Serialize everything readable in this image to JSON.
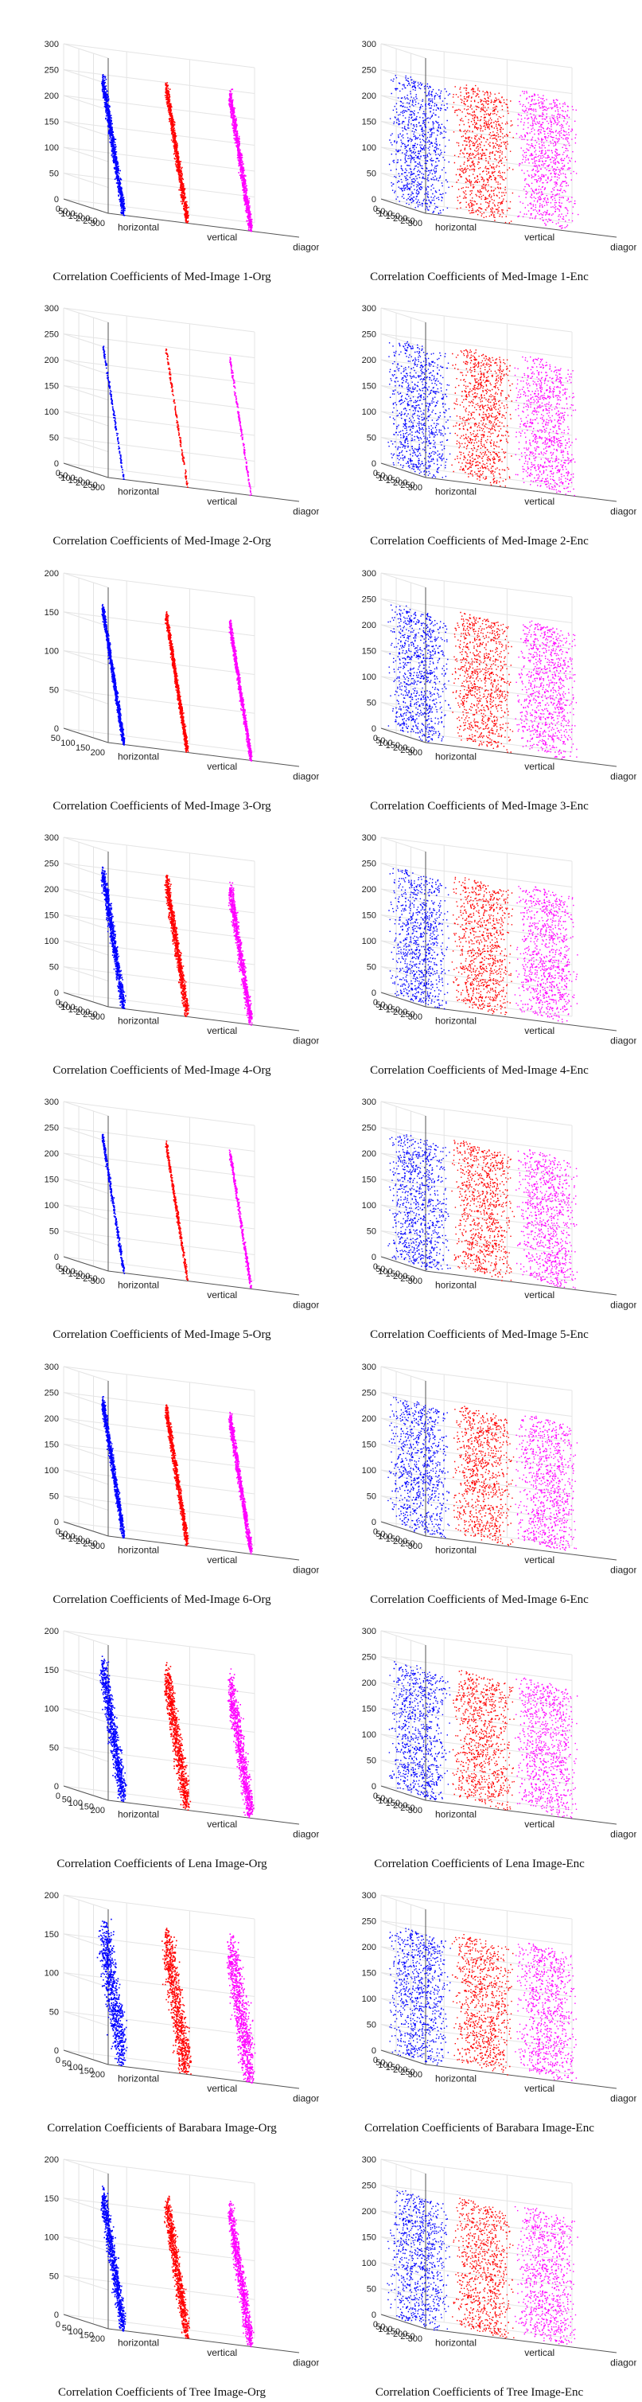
{
  "figure": {
    "columns": [
      "Org",
      "Enc"
    ],
    "background": "#ffffff"
  },
  "chart_data": [
    {
      "type": "scatter",
      "variant": "correlated",
      "title": "Correlation Coefficients of Med-Image 1-Org",
      "zlim": [
        0,
        300
      ],
      "zticks": [
        0,
        50,
        100,
        150,
        200,
        250,
        300
      ],
      "yticks": [
        0,
        50,
        100,
        150,
        200,
        250,
        300
      ],
      "tick_labels_z": [
        "0",
        "50",
        "100",
        "150",
        "200",
        "250",
        "300"
      ],
      "tick_labels_y": [
        "0",
        "50",
        "100",
        "150",
        "200",
        "250",
        "300"
      ],
      "xlabel": "horizontal",
      "ylabel": "vertical",
      "zlabel": "diagonal",
      "series": [
        {
          "name": "horizontal",
          "color": "#0000ff"
        },
        {
          "name": "vertical",
          "color": "#ff0000"
        },
        {
          "name": "diagonal",
          "color": "#ff00ff"
        }
      ],
      "density": "dense",
      "spread": 6
    },
    {
      "type": "scatter",
      "variant": "uniform",
      "title": "Correlation Coefficients of Med-Image 1-Enc",
      "zlim": [
        0,
        300
      ],
      "zticks": [
        0,
        50,
        100,
        150,
        200,
        250,
        300
      ],
      "yticks": [
        0,
        50,
        100,
        150,
        200,
        250,
        300
      ],
      "tick_labels_z": [
        "0",
        "50",
        "100",
        "150",
        "200",
        "250",
        "300"
      ],
      "tick_labels_y": [
        "0",
        "50",
        "100",
        "150",
        "200",
        "250",
        "300"
      ],
      "xlabel": "horizontal",
      "ylabel": "vertical",
      "zlabel": "diagonal",
      "series": [
        {
          "name": "horizontal",
          "color": "#0000ff"
        },
        {
          "name": "vertical",
          "color": "#ff0000"
        },
        {
          "name": "diagonal",
          "color": "#ff00ff"
        }
      ],
      "density": "dense"
    },
    {
      "type": "scatter",
      "variant": "correlated",
      "title": "Correlation Coefficients of Med-Image 2-Org",
      "zlim": [
        0,
        300
      ],
      "zticks": [
        0,
        50,
        100,
        150,
        200,
        250,
        300
      ],
      "yticks": [
        0,
        50,
        100,
        150,
        200,
        250,
        300
      ],
      "tick_labels_z": [
        "0",
        "50",
        "100",
        "150",
        "200",
        "250",
        "300"
      ],
      "tick_labels_y": [
        "0",
        "50",
        "100",
        "150",
        "200",
        "250",
        "300"
      ],
      "xlabel": "horizontal",
      "ylabel": "vertical",
      "zlabel": "diagonal",
      "series": [
        {
          "name": "horizontal",
          "color": "#0000ff"
        },
        {
          "name": "vertical",
          "color": "#ff0000"
        },
        {
          "name": "diagonal",
          "color": "#ff00ff"
        }
      ],
      "density": "sparse",
      "spread": 2
    },
    {
      "type": "scatter",
      "variant": "uniform",
      "title": "Correlation Coefficients of Med-Image 2-Enc",
      "zlim": [
        0,
        300
      ],
      "zticks": [
        0,
        50,
        100,
        150,
        200,
        250,
        300
      ],
      "yticks": [
        0,
        50,
        100,
        150,
        200,
        250,
        300
      ],
      "tick_labels_z": [
        "0",
        "50",
        "100",
        "150",
        "200",
        "250",
        "300"
      ],
      "tick_labels_y": [
        "0",
        "50",
        "100",
        "150",
        "200",
        "250",
        "300"
      ],
      "xlabel": "horizontal",
      "ylabel": "vertical",
      "zlabel": "diagonal",
      "series": [
        {
          "name": "horizontal",
          "color": "#0000ff"
        },
        {
          "name": "vertical",
          "color": "#ff0000"
        },
        {
          "name": "diagonal",
          "color": "#ff00ff"
        }
      ],
      "density": "dense"
    },
    {
      "type": "scatter",
      "variant": "correlated",
      "title": "Correlation Coefficients of Med-Image 3-Org",
      "zlim": [
        0,
        200
      ],
      "zticks": [
        0,
        50,
        100,
        150,
        200
      ],
      "yticks": [
        50,
        100,
        150,
        200
      ],
      "tick_labels_z": [
        "0",
        "50",
        "100",
        "150",
        "200"
      ],
      "tick_labels_y": [
        "50",
        "100",
        "150",
        "200"
      ],
      "xlabel": "horizontal",
      "ylabel": "vertical",
      "zlabel": "diagonal",
      "series": [
        {
          "name": "horizontal",
          "color": "#0000ff"
        },
        {
          "name": "vertical",
          "color": "#ff0000"
        },
        {
          "name": "diagonal",
          "color": "#ff00ff"
        }
      ],
      "density": "dense",
      "spread": 4
    },
    {
      "type": "scatter",
      "variant": "uniform",
      "title": "Correlation Coefficients of Med-Image 3-Enc",
      "zlim": [
        0,
        300
      ],
      "zticks": [
        0,
        50,
        100,
        150,
        200,
        250,
        300
      ],
      "yticks": [
        0,
        50,
        100,
        150,
        200,
        250,
        300
      ],
      "tick_labels_z": [
        "0",
        "50",
        "100",
        "150",
        "200",
        "250",
        "300"
      ],
      "tick_labels_y": [
        "0",
        "50",
        "100",
        "150",
        "200",
        "250",
        "300"
      ],
      "xlabel": "horizontal",
      "ylabel": "vertical",
      "zlabel": "diagonal",
      "series": [
        {
          "name": "horizontal",
          "color": "#0000ff"
        },
        {
          "name": "vertical",
          "color": "#ff0000"
        },
        {
          "name": "diagonal",
          "color": "#ff00ff"
        }
      ],
      "density": "dense"
    },
    {
      "type": "scatter",
      "variant": "correlated",
      "title": "Correlation Coefficients of Med-Image 4-Org",
      "zlim": [
        0,
        300
      ],
      "zticks": [
        0,
        50,
        100,
        150,
        200,
        250,
        300
      ],
      "yticks": [
        0,
        50,
        100,
        150,
        200,
        250,
        300
      ],
      "tick_labels_z": [
        "0",
        "50",
        "100",
        "150",
        "200",
        "250",
        "300"
      ],
      "tick_labels_y": [
        "0",
        "50",
        "100",
        "150",
        "200",
        "250",
        "300"
      ],
      "xlabel": "horizontal",
      "ylabel": "vertical",
      "zlabel": "diagonal",
      "series": [
        {
          "name": "horizontal",
          "color": "#0000ff"
        },
        {
          "name": "vertical",
          "color": "#ff0000"
        },
        {
          "name": "diagonal",
          "color": "#ff00ff"
        }
      ],
      "density": "dense",
      "spread": 7
    },
    {
      "type": "scatter",
      "variant": "uniform",
      "title": "Correlation Coefficients of Med-Image 4-Enc",
      "zlim": [
        0,
        300
      ],
      "zticks": [
        0,
        50,
        100,
        150,
        200,
        250,
        300
      ],
      "yticks": [
        0,
        50,
        100,
        150,
        200,
        250,
        300
      ],
      "tick_labels_z": [
        "0",
        "50",
        "100",
        "150",
        "200",
        "250",
        "300"
      ],
      "tick_labels_y": [
        "0",
        "50",
        "100",
        "150",
        "200",
        "250",
        "300"
      ],
      "xlabel": "horizontal",
      "ylabel": "vertical",
      "zlabel": "diagonal",
      "series": [
        {
          "name": "horizontal",
          "color": "#0000ff"
        },
        {
          "name": "vertical",
          "color": "#ff0000"
        },
        {
          "name": "diagonal",
          "color": "#ff00ff"
        }
      ],
      "density": "dense"
    },
    {
      "type": "scatter",
      "variant": "correlated",
      "title": "Correlation Coefficients of Med-Image 5-Org",
      "zlim": [
        0,
        300
      ],
      "zticks": [
        0,
        50,
        100,
        150,
        200,
        250,
        300
      ],
      "yticks": [
        0,
        50,
        100,
        150,
        200,
        250,
        300
      ],
      "tick_labels_z": [
        "0",
        "50",
        "100",
        "150",
        "200",
        "250",
        "300"
      ],
      "tick_labels_y": [
        "0",
        "50",
        "100",
        "150",
        "200",
        "250",
        "300"
      ],
      "xlabel": "horizontal",
      "ylabel": "vertical",
      "zlabel": "diagonal",
      "series": [
        {
          "name": "horizontal",
          "color": "#0000ff"
        },
        {
          "name": "vertical",
          "color": "#ff0000"
        },
        {
          "name": "diagonal",
          "color": "#ff00ff"
        }
      ],
      "density": "medium",
      "spread": 3
    },
    {
      "type": "scatter",
      "variant": "uniform",
      "title": "Correlation Coefficients of Med-Image 5-Enc",
      "zlim": [
        0,
        300
      ],
      "zticks": [
        0,
        50,
        100,
        150,
        200,
        250,
        300
      ],
      "yticks": [
        0,
        50,
        100,
        150,
        200,
        250,
        300
      ],
      "tick_labels_z": [
        "0",
        "50",
        "100",
        "150",
        "200",
        "250",
        "300"
      ],
      "tick_labels_y": [
        "0",
        "50",
        "100",
        "150",
        "200",
        "250",
        "300"
      ],
      "xlabel": "horizontal",
      "ylabel": "vertical",
      "zlabel": "diagonal",
      "series": [
        {
          "name": "horizontal",
          "color": "#0000ff"
        },
        {
          "name": "vertical",
          "color": "#ff0000"
        },
        {
          "name": "diagonal",
          "color": "#ff00ff"
        }
      ],
      "density": "dense"
    },
    {
      "type": "scatter",
      "variant": "correlated",
      "title": "Correlation Coefficients of Med-Image 6-Org",
      "zlim": [
        0,
        300
      ],
      "zticks": [
        0,
        50,
        100,
        150,
        200,
        250,
        300
      ],
      "yticks": [
        0,
        50,
        100,
        150,
        200,
        250,
        300
      ],
      "tick_labels_z": [
        "0",
        "50",
        "100",
        "150",
        "200",
        "250",
        "300"
      ],
      "tick_labels_y": [
        "0",
        "50",
        "100",
        "150",
        "200",
        "250",
        "300"
      ],
      "xlabel": "horizontal",
      "ylabel": "vertical",
      "zlabel": "diagonal",
      "series": [
        {
          "name": "horizontal",
          "color": "#0000ff"
        },
        {
          "name": "vertical",
          "color": "#ff0000"
        },
        {
          "name": "diagonal",
          "color": "#ff00ff"
        }
      ],
      "density": "dense",
      "spread": 5
    },
    {
      "type": "scatter",
      "variant": "uniform",
      "title": "Correlation Coefficients of Med-Image 6-Enc",
      "zlim": [
        0,
        300
      ],
      "zticks": [
        0,
        50,
        100,
        150,
        200,
        250,
        300
      ],
      "yticks": [
        0,
        50,
        100,
        150,
        200,
        250,
        300
      ],
      "tick_labels_z": [
        "0",
        "50",
        "100",
        "150",
        "200",
        "250",
        "300"
      ],
      "tick_labels_y": [
        "0",
        "50",
        "100",
        "150",
        "200",
        "250",
        "300"
      ],
      "xlabel": "horizontal",
      "ylabel": "vertical",
      "zlabel": "diagonal",
      "series": [
        {
          "name": "horizontal",
          "color": "#0000ff"
        },
        {
          "name": "vertical",
          "color": "#ff0000"
        },
        {
          "name": "diagonal",
          "color": "#ff00ff"
        }
      ],
      "density": "dense"
    },
    {
      "type": "scatter",
      "variant": "correlated",
      "title": "Correlation Coefficients of Lena Image-Org",
      "zlim": [
        0,
        200
      ],
      "zticks": [
        0,
        50,
        100,
        150,
        200
      ],
      "yticks": [
        0,
        50,
        100,
        150,
        200
      ],
      "tick_labels_z": [
        "0",
        "50",
        "100",
        "150",
        "200"
      ],
      "tick_labels_y": [
        "0",
        "50",
        "100",
        "150",
        "200"
      ],
      "xlabel": "horizontal",
      "ylabel": "vertical",
      "zlabel": "diagonal",
      "series": [
        {
          "name": "horizontal",
          "color": "#0000ff"
        },
        {
          "name": "vertical",
          "color": "#ff0000"
        },
        {
          "name": "diagonal",
          "color": "#ff00ff"
        }
      ],
      "density": "dense",
      "spread": 12
    },
    {
      "type": "scatter",
      "variant": "uniform",
      "title": "Correlation Coefficients of Lena Image-Enc",
      "zlim": [
        0,
        300
      ],
      "zticks": [
        0,
        50,
        100,
        150,
        200,
        250,
        300
      ],
      "yticks": [
        0,
        50,
        100,
        150,
        200,
        250,
        300
      ],
      "tick_labels_z": [
        "0",
        "50",
        "100",
        "150",
        "200",
        "250",
        "300"
      ],
      "tick_labels_y": [
        "0",
        "50",
        "100",
        "150",
        "200",
        "250",
        "300"
      ],
      "xlabel": "horizontal",
      "ylabel": "vertical",
      "zlabel": "diagonal",
      "series": [
        {
          "name": "horizontal",
          "color": "#0000ff"
        },
        {
          "name": "vertical",
          "color": "#ff0000"
        },
        {
          "name": "diagonal",
          "color": "#ff00ff"
        }
      ],
      "density": "dense"
    },
    {
      "type": "scatter",
      "variant": "correlated",
      "title": "Correlation Coefficients of Barabara Image-Org",
      "zlim": [
        0,
        200
      ],
      "zticks": [
        0,
        50,
        100,
        150,
        200
      ],
      "yticks": [
        0,
        50,
        100,
        150,
        200
      ],
      "tick_labels_z": [
        "0",
        "50",
        "100",
        "150",
        "200"
      ],
      "tick_labels_y": [
        "0",
        "50",
        "100",
        "150",
        "200"
      ],
      "xlabel": "horizontal",
      "ylabel": "vertical",
      "zlabel": "diagonal",
      "series": [
        {
          "name": "horizontal",
          "color": "#0000ff"
        },
        {
          "name": "vertical",
          "color": "#ff0000"
        },
        {
          "name": "diagonal",
          "color": "#ff00ff"
        }
      ],
      "density": "dense",
      "spread": 20
    },
    {
      "type": "scatter",
      "variant": "uniform",
      "title": "Correlation Coefficients of Barabara Image-Enc",
      "zlim": [
        0,
        300
      ],
      "zticks": [
        0,
        50,
        100,
        150,
        200,
        250,
        300
      ],
      "yticks": [
        0,
        50,
        100,
        150,
        200,
        250,
        300
      ],
      "tick_labels_z": [
        "0",
        "50",
        "100",
        "150",
        "200",
        "250",
        "300"
      ],
      "tick_labels_y": [
        "0",
        "50",
        "100",
        "150",
        "200",
        "250",
        "300"
      ],
      "xlabel": "horizontal",
      "ylabel": "vertical",
      "zlabel": "diagonal",
      "series": [
        {
          "name": "horizontal",
          "color": "#0000ff"
        },
        {
          "name": "vertical",
          "color": "#ff0000"
        },
        {
          "name": "diagonal",
          "color": "#ff00ff"
        }
      ],
      "density": "dense"
    },
    {
      "type": "scatter",
      "variant": "correlated",
      "title": "Correlation Coefficients of Tree Image-Org",
      "zlim": [
        0,
        200
      ],
      "zticks": [
        0,
        50,
        100,
        150,
        200
      ],
      "yticks": [
        0,
        50,
        100,
        150,
        200
      ],
      "tick_labels_z": [
        "0",
        "50",
        "100",
        "150",
        "200"
      ],
      "tick_labels_y": [
        "0",
        "50",
        "100",
        "150",
        "200"
      ],
      "xlabel": "horizontal",
      "ylabel": "vertical",
      "zlabel": "diagonal",
      "series": [
        {
          "name": "horizontal",
          "color": "#0000ff"
        },
        {
          "name": "vertical",
          "color": "#ff0000"
        },
        {
          "name": "diagonal",
          "color": "#ff00ff"
        }
      ],
      "density": "dense",
      "spread": 10
    },
    {
      "type": "scatter",
      "variant": "uniform",
      "title": "Correlation Coefficients of Tree Image-Enc",
      "zlim": [
        0,
        300
      ],
      "zticks": [
        0,
        50,
        100,
        150,
        200,
        250,
        300
      ],
      "yticks": [
        0,
        50,
        100,
        150,
        200,
        250,
        300
      ],
      "tick_labels_z": [
        "0",
        "50",
        "100",
        "150",
        "200",
        "250",
        "300"
      ],
      "tick_labels_y": [
        "0",
        "50",
        "100",
        "150",
        "200",
        "250",
        "300"
      ],
      "xlabel": "horizontal",
      "ylabel": "vertical",
      "zlabel": "diagonal",
      "series": [
        {
          "name": "horizontal",
          "color": "#0000ff"
        },
        {
          "name": "vertical",
          "color": "#ff0000"
        },
        {
          "name": "diagonal",
          "color": "#ff00ff"
        }
      ],
      "density": "dense"
    }
  ]
}
